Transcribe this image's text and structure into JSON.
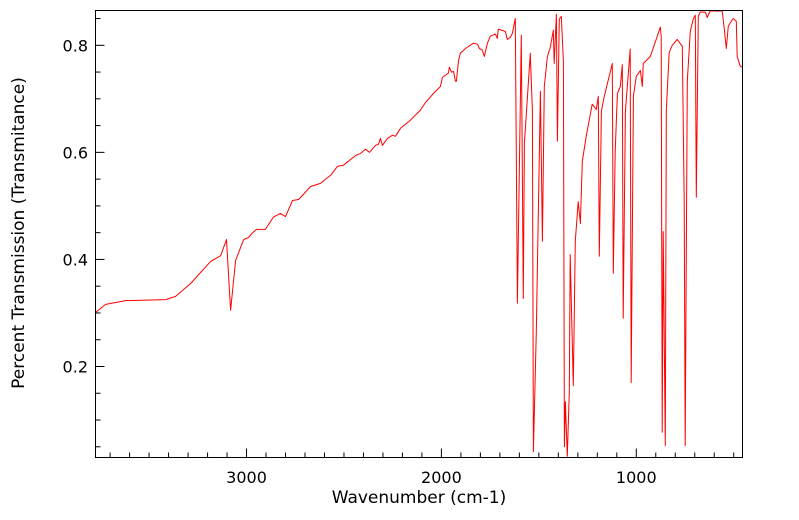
{
  "chart_data": {
    "type": "line",
    "title": "",
    "xlabel": "Wavenumber (cm-1)",
    "ylabel": "Percent Transmission (Transmitance)",
    "xlim": [
      3775,
      455
    ],
    "ylim": [
      0.03,
      0.865
    ],
    "x_ticks": [
      3000,
      2000,
      1000
    ],
    "x_tick_labels": [
      "3000",
      "2000",
      "1000"
    ],
    "x_minor_step": 100,
    "y_ticks": [
      0.2,
      0.4,
      0.6,
      0.8
    ],
    "y_tick_labels": [
      "0.2",
      "0.4",
      "0.6",
      "0.8"
    ],
    "y_minor_step": 0.05,
    "grid": false,
    "series": [
      {
        "name": "spectrum",
        "color": "#ff0000",
        "x": [
          3774,
          3723,
          3620,
          3415,
          3364,
          3287,
          3185,
          3133,
          3103,
          3082,
          3056,
          3015,
          2990,
          2969,
          2949,
          2903,
          2862,
          2826,
          2800,
          2764,
          2733,
          2672,
          2621,
          2569,
          2533,
          2503,
          2441,
          2415,
          2390,
          2369,
          2338,
          2323,
          2313,
          2303,
          2277,
          2251,
          2236,
          2210,
          2159,
          2108,
          2082,
          2041,
          2005,
          1995,
          1964,
          1959,
          1949,
          1938,
          1928,
          1923,
          1913,
          1903,
          1877,
          1836,
          1815,
          1805,
          1790,
          1780,
          1764,
          1749,
          1723,
          1713,
          1708,
          1672,
          1662,
          1646,
          1636,
          1621,
          1610,
          1590,
          1580,
          1574,
          1544,
          1533,
          1528,
          1513,
          1492,
          1482,
          1472,
          1456,
          1441,
          1426,
          1421,
          1410,
          1405,
          1395,
          1385,
          1374,
          1369,
          1364,
          1354,
          1344,
          1339,
          1323,
          1313,
          1298,
          1287,
          1277,
          1257,
          1226,
          1205,
          1195,
          1190,
          1179,
          1164,
          1123,
          1118,
          1108,
          1097,
          1082,
          1072,
          1067,
          1056,
          1031,
          1026,
          1015,
          1000,
          979,
          969,
          964,
          928,
          892,
          877,
          872,
          867,
          862,
          851,
          846,
          831,
          815,
          790,
          764,
          754,
          749,
          738,
          723,
          708,
          697,
          692,
          682,
          672,
          646,
          636,
          621,
          559,
          549,
          538,
          528,
          503,
          487,
          482,
          467,
          456
        ],
        "y": [
          0.301,
          0.316,
          0.323,
          0.325,
          0.331,
          0.355,
          0.396,
          0.407,
          0.437,
          0.305,
          0.398,
          0.437,
          0.441,
          0.45,
          0.456,
          0.456,
          0.479,
          0.486,
          0.48,
          0.51,
          0.512,
          0.536,
          0.542,
          0.557,
          0.574,
          0.576,
          0.594,
          0.598,
          0.606,
          0.6,
          0.613,
          0.615,
          0.626,
          0.613,
          0.626,
          0.632,
          0.63,
          0.645,
          0.66,
          0.679,
          0.693,
          0.71,
          0.723,
          0.74,
          0.748,
          0.759,
          0.75,
          0.751,
          0.733,
          0.733,
          0.77,
          0.785,
          0.794,
          0.804,
          0.802,
          0.794,
          0.791,
          0.779,
          0.804,
          0.817,
          0.821,
          0.813,
          0.83,
          0.826,
          0.811,
          0.815,
          0.822,
          0.85,
          0.318,
          0.819,
          0.327,
          0.617,
          0.785,
          0.677,
          0.041,
          0.265,
          0.714,
          0.434,
          0.723,
          0.779,
          0.796,
          0.828,
          0.766,
          0.858,
          0.621,
          0.849,
          0.854,
          0.77,
          0.05,
          0.134,
          0.032,
          0.153,
          0.409,
          0.164,
          0.434,
          0.508,
          0.467,
          0.583,
          0.63,
          0.69,
          0.68,
          0.705,
          0.406,
          0.677,
          0.705,
          0.766,
          0.374,
          0.602,
          0.71,
          0.723,
          0.764,
          0.29,
          0.677,
          0.793,
          0.17,
          0.705,
          0.742,
          0.753,
          0.723,
          0.766,
          0.779,
          0.817,
          0.834,
          0.817,
          0.077,
          0.452,
          0.052,
          0.677,
          0.787,
          0.8,
          0.811,
          0.798,
          0.508,
          0.052,
          0.733,
          0.826,
          0.849,
          0.856,
          0.516,
          0.854,
          0.862,
          0.862,
          0.852,
          0.864,
          0.864,
          0.832,
          0.794,
          0.836,
          0.85,
          0.845,
          0.779,
          0.761,
          0.759
        ]
      }
    ]
  }
}
